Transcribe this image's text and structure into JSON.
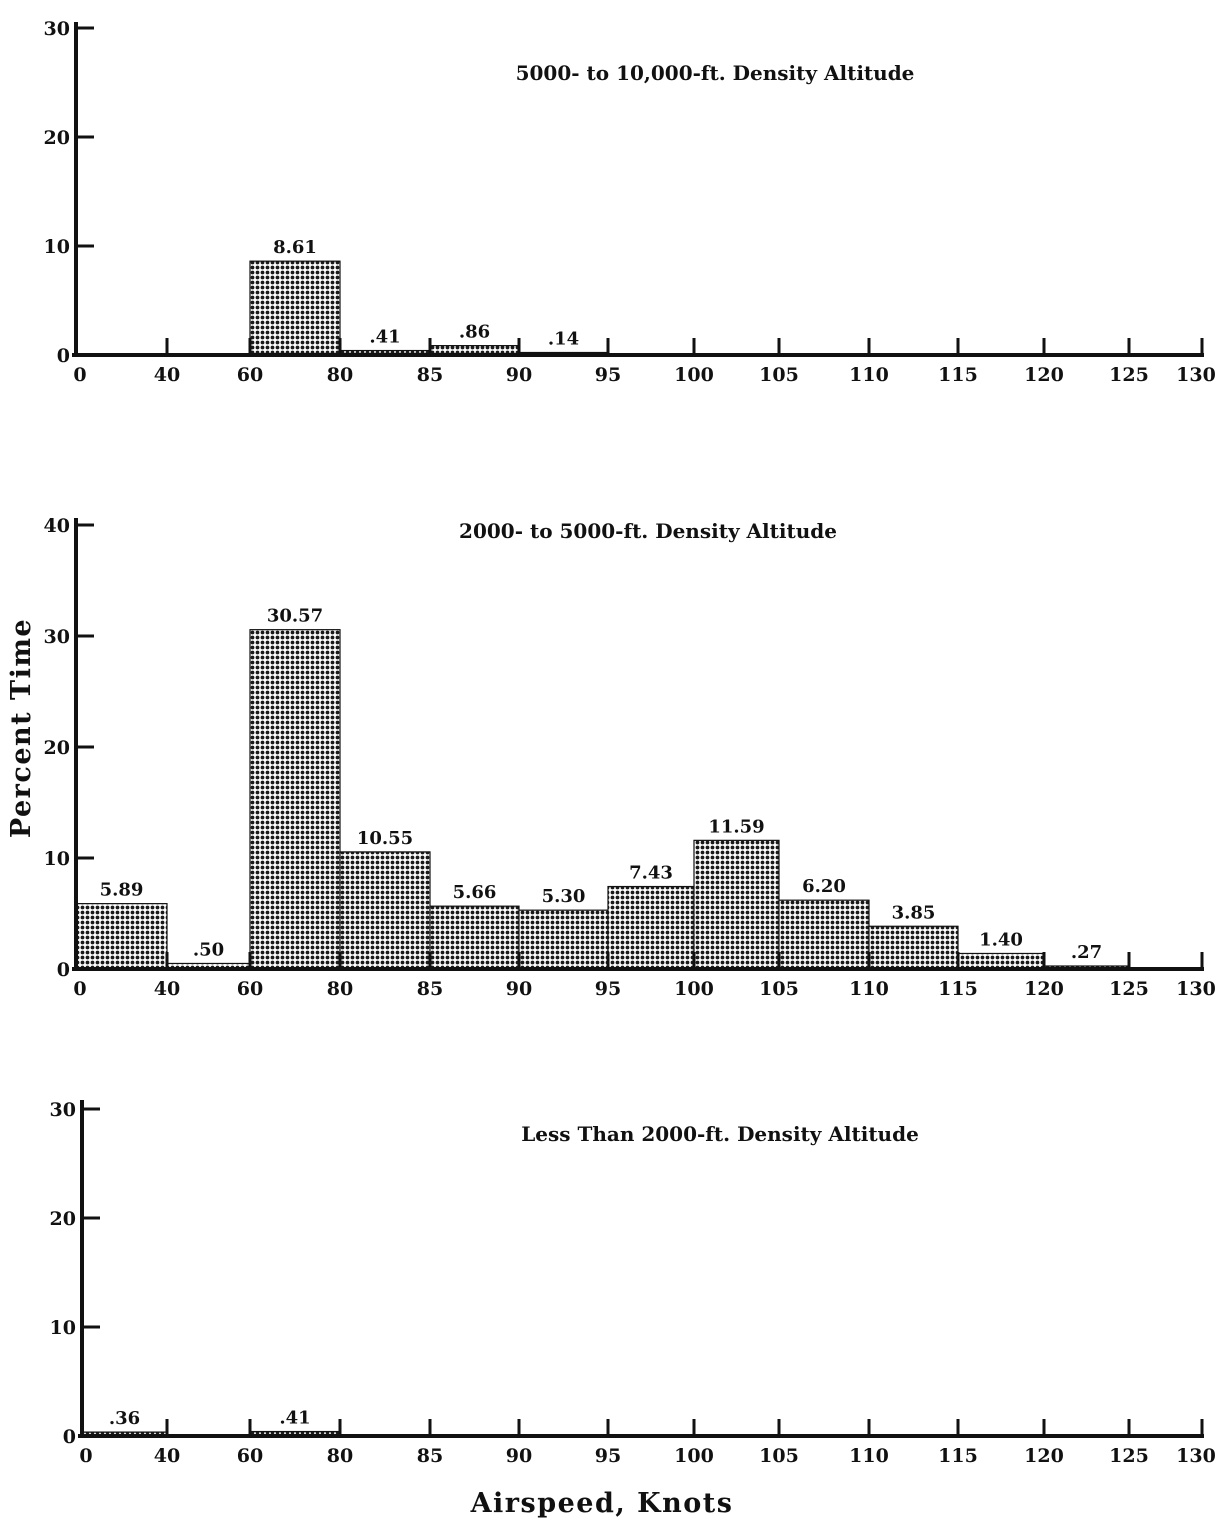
{
  "chart_data": [
    {
      "type": "bar",
      "title": "5000- to 10,000-ft. Density Altitude",
      "xlabel": "Airspeed, Knots",
      "ylabel": "Percent Time",
      "x_ticks": [
        "0",
        "40",
        "60",
        "80",
        "85",
        "90",
        "95",
        "100",
        "105",
        "110",
        "115",
        "120",
        "125",
        "130"
      ],
      "y_ticks": [
        0,
        10,
        20,
        30
      ],
      "ylim": [
        0,
        30
      ],
      "bins": [
        {
          "from": "60",
          "to": "80",
          "value": 8.61,
          "label": "8.61"
        },
        {
          "from": "80",
          "to": "85",
          "value": 0.41,
          "label": ".41"
        },
        {
          "from": "85",
          "to": "90",
          "value": 0.86,
          "label": ".86"
        },
        {
          "from": "90",
          "to": "95",
          "value": 0.14,
          "label": ".14"
        }
      ]
    },
    {
      "type": "bar",
      "title": "2000- to 5000-ft. Density Altitude",
      "xlabel": "Airspeed, Knots",
      "ylabel": "Percent Time",
      "x_ticks": [
        "0",
        "40",
        "60",
        "80",
        "85",
        "90",
        "95",
        "100",
        "105",
        "110",
        "115",
        "120",
        "125",
        "130"
      ],
      "y_ticks": [
        0,
        10,
        20,
        30,
        40
      ],
      "ylim": [
        0,
        40
      ],
      "bins": [
        {
          "from": "0",
          "to": "40",
          "value": 5.89,
          "label": "5.89"
        },
        {
          "from": "40",
          "to": "60",
          "value": 0.5,
          "label": ".50"
        },
        {
          "from": "60",
          "to": "80",
          "value": 30.57,
          "label": "30.57"
        },
        {
          "from": "80",
          "to": "85",
          "value": 10.55,
          "label": "10.55"
        },
        {
          "from": "85",
          "to": "90",
          "value": 5.66,
          "label": "5.66"
        },
        {
          "from": "90",
          "to": "95",
          "value": 5.3,
          "label": "5.30"
        },
        {
          "from": "95",
          "to": "100",
          "value": 7.43,
          "label": "7.43"
        },
        {
          "from": "100",
          "to": "105",
          "value": 11.59,
          "label": "11.59"
        },
        {
          "from": "105",
          "to": "110",
          "value": 6.2,
          "label": "6.20"
        },
        {
          "from": "110",
          "to": "115",
          "value": 3.85,
          "label": "3.85"
        },
        {
          "from": "115",
          "to": "120",
          "value": 1.4,
          "label": "1.40"
        },
        {
          "from": "120",
          "to": "125",
          "value": 0.27,
          "label": ".27"
        }
      ]
    },
    {
      "type": "bar",
      "title": "Less Than 2000-ft. Density Altitude",
      "xlabel": "Airspeed, Knots",
      "ylabel": "Percent Time",
      "x_ticks": [
        "0",
        "40",
        "60",
        "80",
        "85",
        "90",
        "95",
        "100",
        "105",
        "110",
        "115",
        "120",
        "125",
        "130"
      ],
      "y_ticks": [
        0,
        10,
        20,
        30
      ],
      "ylim": [
        0,
        30
      ],
      "bins": [
        {
          "from": "0",
          "to": "40",
          "value": 0.36,
          "label": ".36"
        },
        {
          "from": "60",
          "to": "80",
          "value": 0.41,
          "label": ".41"
        }
      ]
    }
  ],
  "axis_titles": {
    "y": "Percent Time",
    "x": "Airspeed, Knots"
  },
  "colors": {
    "ink": "#111111",
    "bar_fill": "#1a1a1a"
  }
}
